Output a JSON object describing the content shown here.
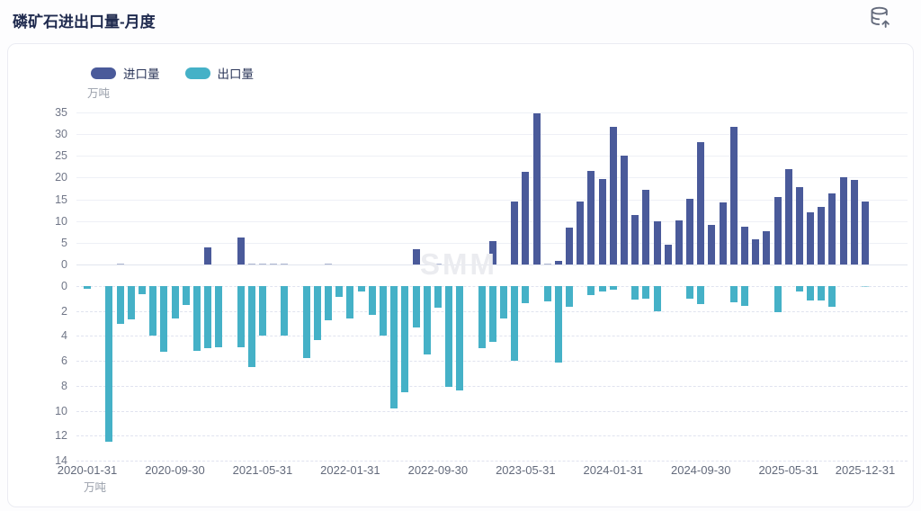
{
  "page": {
    "title": "磷矿石进出口量-月度"
  },
  "icons": {
    "top_right": "database-export-icon"
  },
  "legend": [
    {
      "label": "进口量",
      "color": "#4a5a9a"
    },
    {
      "label": "出口量",
      "color": "#45b1c7"
    }
  ],
  "chart_data": {
    "type": "bar",
    "title": "磷矿石进出口量-月度",
    "unit": "万吨",
    "watermark": "SMM",
    "legend_position": "top-left",
    "grid": true,
    "x": [
      "2020-01-31",
      "2020-02-29",
      "2020-03-31",
      "2020-04-30",
      "2020-05-31",
      "2020-06-30",
      "2020-07-31",
      "2020-08-31",
      "2020-09-30",
      "2020-10-31",
      "2020-11-30",
      "2020-12-31",
      "2021-01-31",
      "2021-02-28",
      "2021-03-31",
      "2021-04-30",
      "2021-05-31",
      "2021-06-30",
      "2021-07-31",
      "2021-08-31",
      "2021-09-30",
      "2021-10-31",
      "2021-11-30",
      "2021-12-31",
      "2022-01-31",
      "2022-02-28",
      "2022-03-31",
      "2022-04-30",
      "2022-05-31",
      "2022-06-30",
      "2022-07-31",
      "2022-08-31",
      "2022-09-30",
      "2022-10-31",
      "2022-11-30",
      "2022-12-31",
      "2023-01-31",
      "2023-02-28",
      "2023-03-31",
      "2023-04-30",
      "2023-05-31",
      "2023-06-30",
      "2023-07-31",
      "2023-08-31",
      "2023-09-30",
      "2023-10-31",
      "2023-11-30",
      "2023-12-31",
      "2024-01-31",
      "2024-02-29",
      "2024-03-31",
      "2024-04-30",
      "2024-05-31",
      "2024-06-30",
      "2024-07-31",
      "2024-08-31",
      "2024-09-30",
      "2024-10-31",
      "2024-11-30",
      "2024-12-31",
      "2025-01-31",
      "2025-02-28",
      "2025-03-31",
      "2025-04-30",
      "2025-05-31",
      "2025-06-30",
      "2025-07-31",
      "2025-08-31",
      "2025-09-30",
      "2025-10-31",
      "2025-11-30",
      "2025-12-31"
    ],
    "x_tick_labels": [
      "2020-01-31",
      "2020-09-30",
      "2021-05-31",
      "2022-01-31",
      "2022-09-30",
      "2023-05-31",
      "2024-01-31",
      "2024-09-30",
      "2025-05-31",
      "2025-12-31"
    ],
    "x_tick_indices": [
      0,
      8,
      16,
      24,
      32,
      40,
      48,
      56,
      64,
      71
    ],
    "series": [
      {
        "name": "进口量",
        "axis": "top",
        "color": "#4a5a9a",
        "ylim": [
          0,
          35
        ],
        "yticks": [
          0,
          5,
          10,
          15,
          20,
          25,
          30,
          35
        ],
        "values": [
          0,
          0,
          0,
          0.1,
          0,
          0,
          0,
          0,
          0,
          0,
          0,
          3.9,
          0,
          0,
          6.3,
          0.15,
          0.1,
          0.1,
          0.1,
          0,
          0,
          0,
          0.1,
          0,
          0,
          0,
          0,
          0,
          0,
          0,
          3.5,
          0,
          0.15,
          0,
          0,
          0,
          0,
          5.3,
          0,
          14.6,
          21.4,
          34.8,
          0.3,
          0.9,
          8.6,
          14.5,
          21.6,
          19.7,
          31.7,
          25.1,
          11.3,
          17.2,
          9.9,
          4.5,
          10.1,
          15.2,
          28.2,
          9.1,
          14.3,
          31.6,
          8.7,
          5.9,
          7.6,
          15.6,
          21.9,
          17.9,
          12.1,
          13.3,
          16.4,
          20.1,
          19.4,
          14.6
        ]
      },
      {
        "name": "出口量",
        "axis": "bottom-inverted",
        "color": "#45b1c7",
        "ylim": [
          0,
          14
        ],
        "yticks": [
          0,
          2,
          4,
          6,
          8,
          10,
          12,
          14
        ],
        "values": [
          0.2,
          0,
          12.5,
          3.0,
          2.7,
          0.65,
          4.0,
          5.3,
          2.6,
          1.5,
          5.2,
          5.0,
          4.9,
          0,
          4.9,
          6.5,
          4.0,
          0,
          4.0,
          0,
          5.8,
          4.3,
          2.75,
          0.85,
          2.6,
          0.4,
          2.3,
          3.95,
          9.8,
          8.5,
          3.3,
          5.5,
          1.7,
          8.1,
          8.4,
          0,
          5.0,
          4.5,
          2.6,
          6.0,
          1.4,
          0,
          1.2,
          6.1,
          1.65,
          0,
          0.7,
          0.45,
          0.25,
          0,
          1.1,
          1.0,
          2.0,
          0,
          0,
          1.0,
          1.45,
          0,
          0,
          1.3,
          1.6,
          0,
          0,
          2.1,
          0,
          0.45,
          1.15,
          1.15,
          1.65,
          0,
          0,
          0.1
        ]
      }
    ]
  }
}
